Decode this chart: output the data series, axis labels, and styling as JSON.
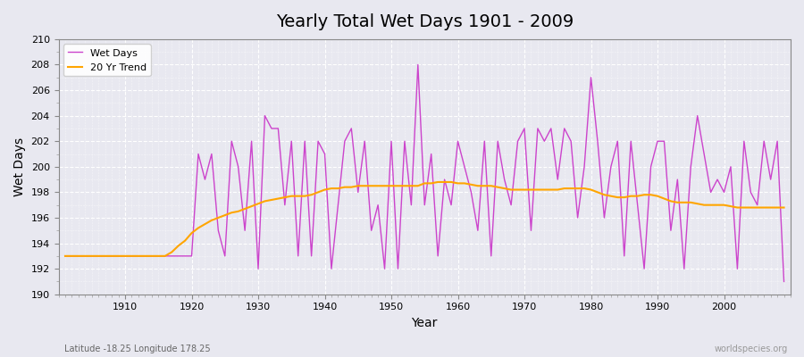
{
  "title": "Yearly Total Wet Days 1901 - 2009",
  "xlabel": "Year",
  "ylabel": "Wet Days",
  "subtitle": "Latitude -18.25 Longitude 178.25",
  "watermark": "worldspecies.org",
  "ylim": [
    190,
    210
  ],
  "yticks": [
    190,
    192,
    194,
    196,
    198,
    200,
    202,
    204,
    206,
    208,
    210
  ],
  "xlim": [
    1901,
    2009
  ],
  "xticks": [
    1910,
    1920,
    1930,
    1940,
    1950,
    1960,
    1970,
    1980,
    1990,
    2000
  ],
  "wet_days_color": "#CC44CC",
  "trend_color": "#FFA500",
  "background_color": "#E8E8F0",
  "legend_label_wet": "Wet Days",
  "legend_label_trend": "20 Yr Trend",
  "years": [
    1901,
    1902,
    1903,
    1904,
    1905,
    1906,
    1907,
    1908,
    1909,
    1910,
    1911,
    1912,
    1913,
    1914,
    1915,
    1916,
    1917,
    1918,
    1919,
    1920,
    1921,
    1922,
    1923,
    1924,
    1925,
    1926,
    1927,
    1928,
    1929,
    1930,
    1931,
    1932,
    1933,
    1934,
    1935,
    1936,
    1937,
    1938,
    1939,
    1940,
    1941,
    1942,
    1943,
    1944,
    1945,
    1946,
    1947,
    1948,
    1949,
    1950,
    1951,
    1952,
    1953,
    1954,
    1955,
    1956,
    1957,
    1958,
    1959,
    1960,
    1961,
    1962,
    1963,
    1964,
    1965,
    1966,
    1967,
    1968,
    1969,
    1970,
    1971,
    1972,
    1973,
    1974,
    1975,
    1976,
    1977,
    1978,
    1979,
    1980,
    1981,
    1982,
    1983,
    1984,
    1985,
    1986,
    1987,
    1988,
    1989,
    1990,
    1991,
    1992,
    1993,
    1994,
    1995,
    1996,
    1997,
    1998,
    1999,
    2000,
    2001,
    2002,
    2003,
    2004,
    2005,
    2006,
    2007,
    2008,
    2009
  ],
  "wet_days": [
    193,
    193,
    193,
    193,
    193,
    193,
    193,
    193,
    193,
    193,
    193,
    193,
    193,
    193,
    193,
    193,
    193,
    193,
    193,
    193,
    201,
    199,
    201,
    195,
    193,
    202,
    200,
    195,
    202,
    192,
    204,
    203,
    203,
    197,
    202,
    193,
    202,
    193,
    202,
    201,
    192,
    197,
    202,
    203,
    198,
    202,
    195,
    197,
    192,
    202,
    192,
    202,
    197,
    208,
    197,
    201,
    193,
    199,
    197,
    202,
    200,
    198,
    195,
    202,
    193,
    202,
    199,
    197,
    202,
    203,
    195,
    203,
    202,
    203,
    199,
    203,
    202,
    196,
    200,
    207,
    202,
    196,
    200,
    202,
    193,
    202,
    197,
    192,
    200,
    202,
    202,
    195,
    199,
    192,
    200,
    204,
    201,
    198,
    199,
    198,
    200,
    192,
    202,
    198,
    197,
    202,
    199,
    202,
    191
  ],
  "trend_years": [
    1901,
    1902,
    1903,
    1904,
    1905,
    1906,
    1907,
    1908,
    1909,
    1910,
    1911,
    1912,
    1913,
    1914,
    1915,
    1916,
    1917,
    1918,
    1919,
    1920,
    1921,
    1922,
    1923,
    1924,
    1925,
    1926,
    1927,
    1928,
    1929,
    1930,
    1931,
    1932,
    1933,
    1934,
    1935,
    1936,
    1937,
    1938,
    1939,
    1940,
    1941,
    1942,
    1943,
    1944,
    1945,
    1946,
    1947,
    1948,
    1949,
    1950,
    1951,
    1952,
    1953,
    1954,
    1955,
    1956,
    1957,
    1958,
    1959,
    1960,
    1961,
    1962,
    1963,
    1964,
    1965,
    1966,
    1967,
    1968,
    1969,
    1970,
    1971,
    1972,
    1973,
    1974,
    1975,
    1976,
    1977,
    1978,
    1979,
    1980,
    1981,
    1982,
    1983,
    1984,
    1985,
    1986,
    1987,
    1988,
    1989,
    1990,
    1991,
    1992,
    1993,
    1994,
    1995,
    1996,
    1997,
    1998,
    1999,
    2000,
    2001,
    2002,
    2003,
    2004,
    2005,
    2006,
    2007,
    2008,
    2009
  ],
  "trend_values": [
    193.0,
    193.0,
    193.0,
    193.0,
    193.0,
    193.0,
    193.0,
    193.0,
    193.0,
    193.0,
    193.0,
    193.0,
    193.0,
    193.0,
    193.0,
    193.0,
    193.3,
    193.8,
    194.2,
    194.8,
    195.2,
    195.5,
    195.8,
    196.0,
    196.2,
    196.4,
    196.5,
    196.7,
    196.9,
    197.1,
    197.3,
    197.4,
    197.5,
    197.6,
    197.7,
    197.7,
    197.7,
    197.8,
    198.0,
    198.2,
    198.3,
    198.3,
    198.4,
    198.4,
    198.5,
    198.5,
    198.5,
    198.5,
    198.5,
    198.5,
    198.5,
    198.5,
    198.5,
    198.5,
    198.7,
    198.7,
    198.8,
    198.8,
    198.8,
    198.7,
    198.7,
    198.6,
    198.5,
    198.5,
    198.5,
    198.4,
    198.3,
    198.2,
    198.2,
    198.2,
    198.2,
    198.2,
    198.2,
    198.2,
    198.2,
    198.3,
    198.3,
    198.3,
    198.3,
    198.2,
    198.0,
    197.8,
    197.7,
    197.6,
    197.6,
    197.7,
    197.7,
    197.8,
    197.8,
    197.7,
    197.5,
    197.3,
    197.2,
    197.2,
    197.2,
    197.1,
    197.0,
    197.0,
    197.0,
    197.0,
    196.9,
    196.8,
    196.8,
    196.8,
    196.8,
    196.8,
    196.8,
    196.8,
    196.8
  ]
}
